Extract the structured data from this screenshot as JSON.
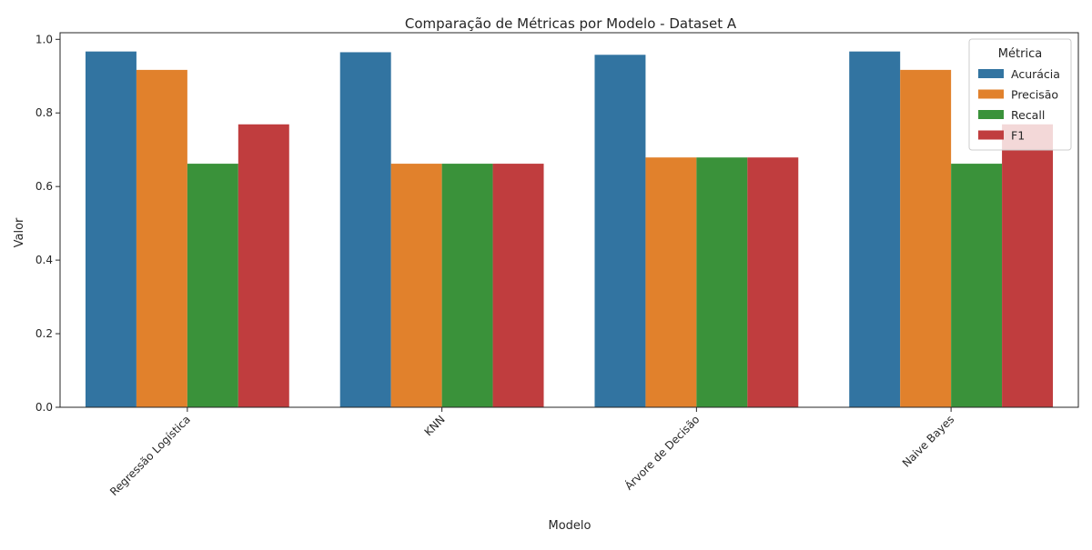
{
  "chart_data": {
    "type": "bar",
    "title": "Comparação de Métricas por Modelo - Dataset A",
    "xlabel": "Modelo",
    "ylabel": "Valor",
    "ylim": [
      0,
      1.0
    ],
    "yticks": [
      "0.0",
      "0.2",
      "0.4",
      "0.6",
      "0.8",
      "1.0"
    ],
    "categories": [
      "Regressão Logística",
      "KNN",
      "Árvore de Decisão",
      "Naive Bayes"
    ],
    "legend": {
      "title": "Métrica",
      "placement": "top-right"
    },
    "grid": false,
    "series": [
      {
        "name": "Acurácia",
        "color": "#3274a1",
        "values": [
          0.967,
          0.965,
          0.958,
          0.967
        ]
      },
      {
        "name": "Precisão",
        "color": "#e1812c",
        "values": [
          0.917,
          0.662,
          0.679,
          0.917
        ]
      },
      {
        "name": "Recall",
        "color": "#3a923a",
        "values": [
          0.662,
          0.662,
          0.679,
          0.662
        ]
      },
      {
        "name": "F1",
        "color": "#c03d3e",
        "values": [
          0.769,
          0.662,
          0.679,
          0.769
        ]
      }
    ]
  }
}
